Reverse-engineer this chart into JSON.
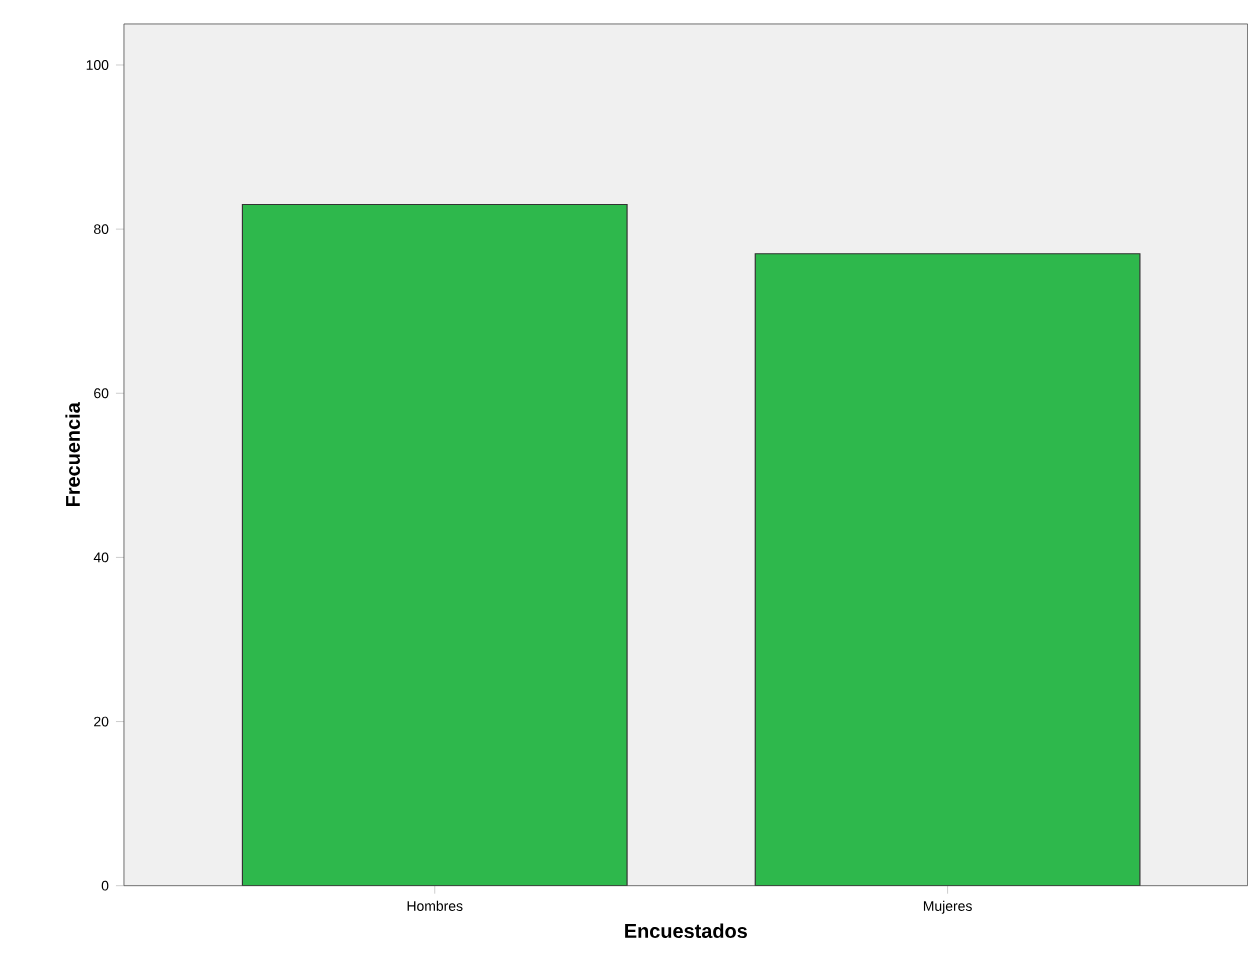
{
  "chart_data": {
    "type": "bar",
    "xlabel": "Encuestados",
    "ylabel": "Frecuencia",
    "categories": [
      "Hombres",
      "Mujeres"
    ],
    "values": [
      83,
      77
    ],
    "color": "#2eb84c",
    "ylim": [
      0,
      105
    ],
    "yticks": [
      0,
      20,
      40,
      60,
      80,
      100
    ]
  }
}
